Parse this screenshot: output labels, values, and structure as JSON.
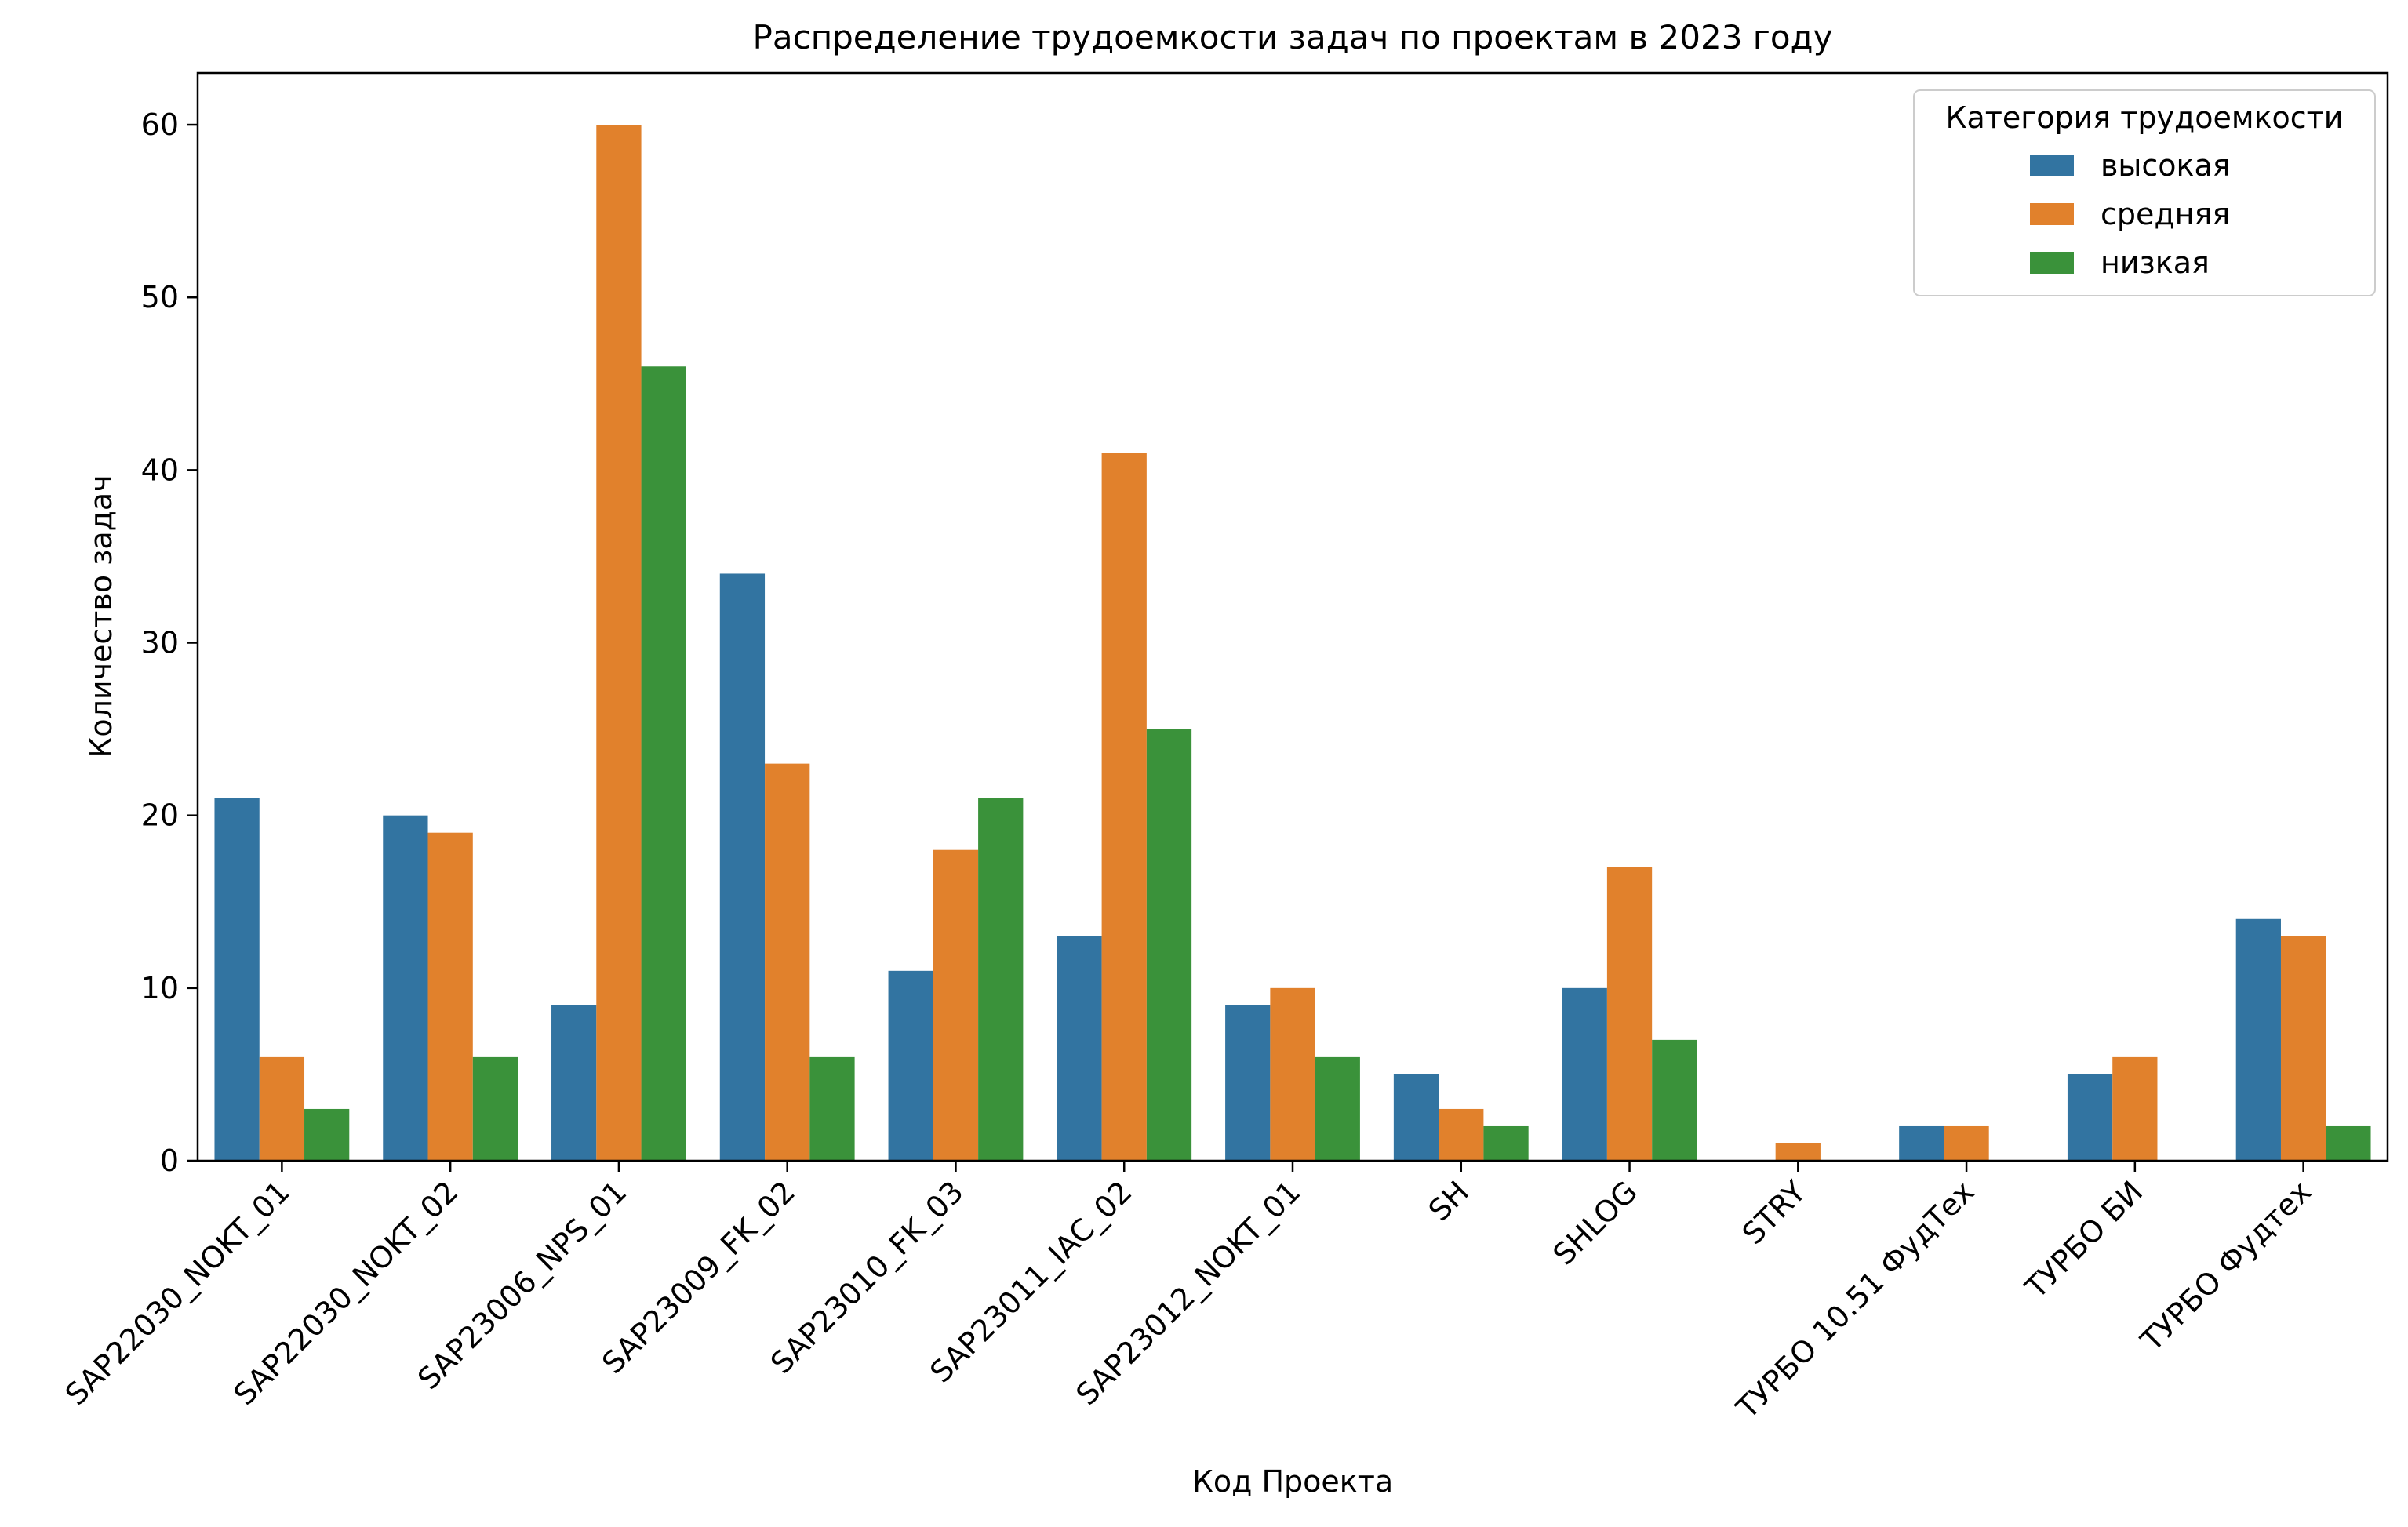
{
  "chart_data": {
    "type": "bar",
    "title": "Распределение трудоемкости задач по проектам в 2023 году",
    "xlabel": "Код Проекта",
    "ylabel": "Количество задач",
    "ylim": [
      0,
      63
    ],
    "yticks": [
      0,
      10,
      20,
      30,
      40,
      50,
      60
    ],
    "grid": false,
    "legend": {
      "title": "Категория трудоемкости",
      "placement": "top-right"
    },
    "categories": [
      "SAP22030_NOKT_01",
      "SAP22030_NOKT_02",
      "SAP23006_NPS_01",
      "SAP23009_FK_02",
      "SAP23010_FK_03",
      "SAP23011_IAC_02",
      "SAP23012_NOKT_01",
      "SH",
      "SHLOG",
      "STRY",
      "ТУРБО 10.51 ФудТех",
      "ТУРБО БИ",
      "ТУРБО Фудтех"
    ],
    "series": [
      {
        "name": "высокая",
        "color": "#3274a1",
        "values": [
          21,
          20,
          9,
          34,
          11,
          13,
          9,
          5,
          10,
          0,
          2,
          5,
          14
        ]
      },
      {
        "name": "средняя",
        "color": "#e1812c",
        "values": [
          6,
          19,
          60,
          23,
          18,
          41,
          10,
          3,
          17,
          1,
          2,
          6,
          13
        ]
      },
      {
        "name": "низкая",
        "color": "#3a923a",
        "values": [
          3,
          6,
          46,
          6,
          21,
          25,
          6,
          2,
          7,
          0,
          0,
          0,
          2
        ]
      }
    ]
  }
}
